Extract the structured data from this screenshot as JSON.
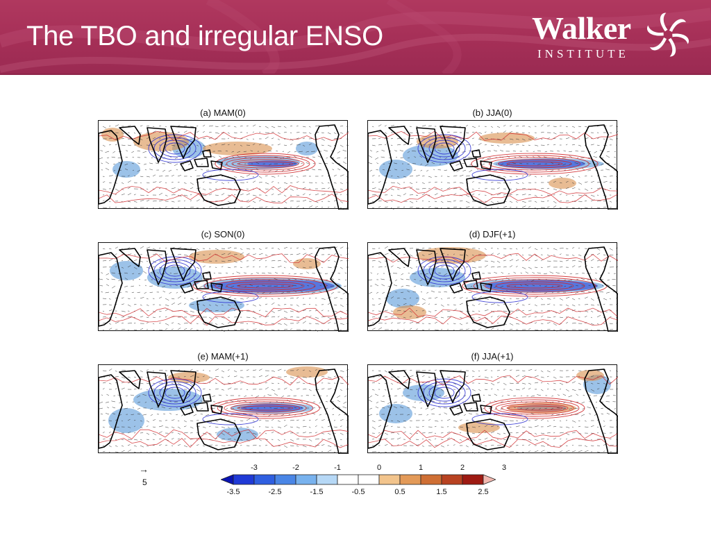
{
  "slide": {
    "title": "The TBO and irregular ENSO"
  },
  "logo": {
    "word": "Walker",
    "sub": "INSTITUTE"
  },
  "colors": {
    "header": "#a8325a",
    "neg_shading": "#4a8fd6",
    "pos_shading": "#d9904c",
    "contour_neg": "#2b2fd0",
    "contour_pos": "#d0282b"
  },
  "panels": [
    {
      "label": "(a) MAM(0)"
    },
    {
      "label": "(b) JJA(0)"
    },
    {
      "label": "(c) SON(0)"
    },
    {
      "label": "(d) DJF(+1)"
    },
    {
      "label": "(e) MAM(+1)"
    },
    {
      "label": "(f) JJA(+1)"
    }
  ],
  "reference_vector": {
    "arrow": "→",
    "value": "5"
  },
  "colorbar": {
    "top_labels": [
      "-3",
      "-2",
      "-1",
      "0",
      "1",
      "2",
      "3"
    ],
    "bottom_labels": [
      "-3.5",
      "-2.5",
      "-1.5",
      "-0.5",
      "0.5",
      "1.5",
      "2.5"
    ],
    "colors": [
      "#0a14b4",
      "#1f3ad6",
      "#2f5fe0",
      "#4a86e6",
      "#78b2ee",
      "#b6d8f6",
      "#ffffff",
      "#ffffff",
      "#f2c48c",
      "#e39a58",
      "#cf6f34",
      "#b84221",
      "#9e1a12",
      "#f2b8b0"
    ]
  }
}
